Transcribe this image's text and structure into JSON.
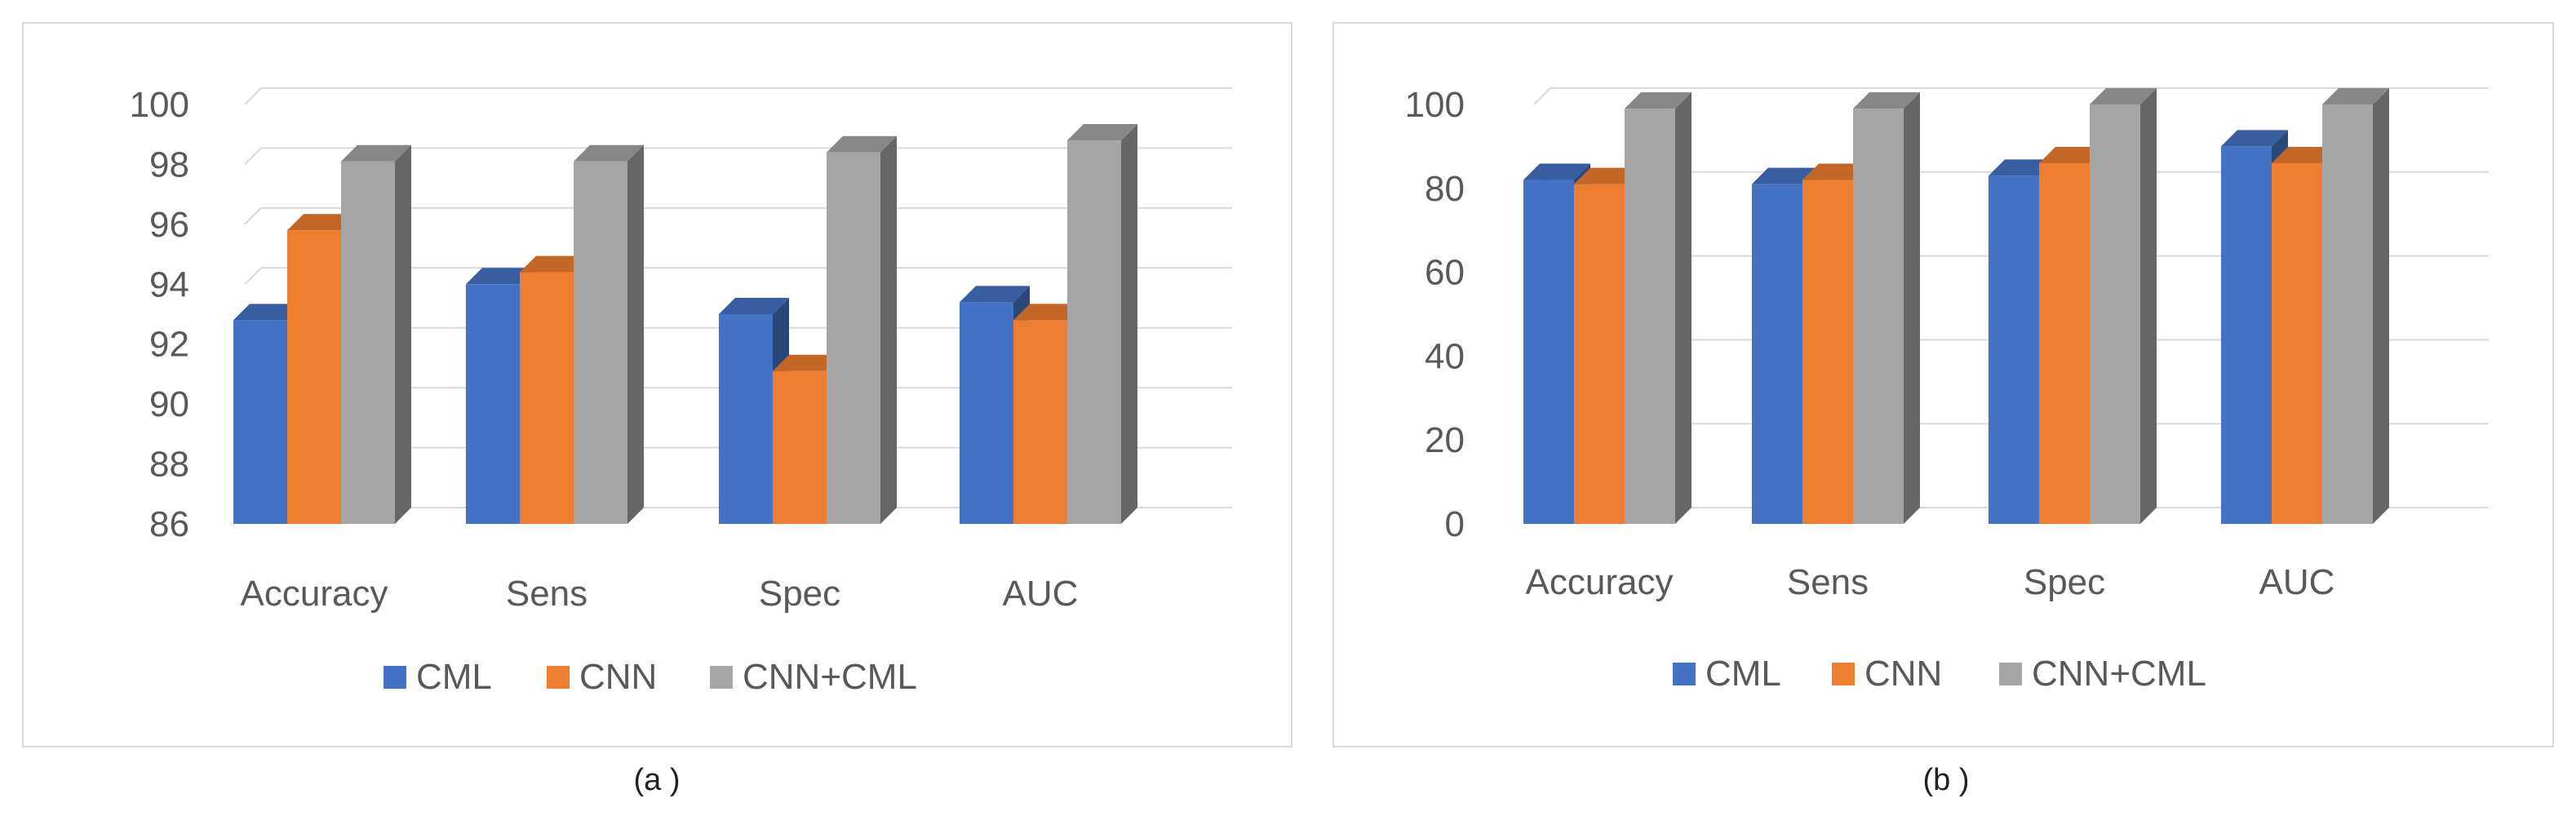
{
  "colors": {
    "CML": "#4472c4",
    "CNN": "#ed7d31",
    "CNN+CML": "#a5a5a5",
    "grid": "#d9d9d9",
    "text": "#595959"
  },
  "chart_data": [
    {
      "type": "bar",
      "caption": "(a )",
      "categories": [
        "Accuracy",
        "Sens",
        "Spec",
        "AUC"
      ],
      "series": [
        {
          "name": "CML",
          "values": [
            92.8,
            94.0,
            93.0,
            93.4
          ]
        },
        {
          "name": "CNN",
          "values": [
            95.8,
            94.4,
            91.1,
            92.8
          ]
        },
        {
          "name": "CNN+CML",
          "values": [
            98.1,
            98.1,
            98.4,
            98.8
          ]
        }
      ],
      "yticks": [
        "86",
        "88",
        "90",
        "92",
        "94",
        "96",
        "98",
        "100"
      ],
      "ylim": [
        86,
        100
      ],
      "grid": true,
      "legend_position": "bottom"
    },
    {
      "type": "bar",
      "caption": "(b )",
      "categories": [
        "Accuracy",
        "Sens",
        "Spec",
        "AUC"
      ],
      "series": [
        {
          "name": "CML",
          "values": [
            82,
            81,
            83,
            90
          ]
        },
        {
          "name": "CNN",
          "values": [
            81,
            82,
            86,
            86
          ]
        },
        {
          "name": "CNN+CML",
          "values": [
            99,
            99,
            100,
            100
          ]
        }
      ],
      "yticks": [
        "0",
        "20",
        "40",
        "60",
        "80",
        "100"
      ],
      "ylim": [
        0,
        100
      ],
      "grid": true,
      "legend_position": "bottom"
    }
  ]
}
